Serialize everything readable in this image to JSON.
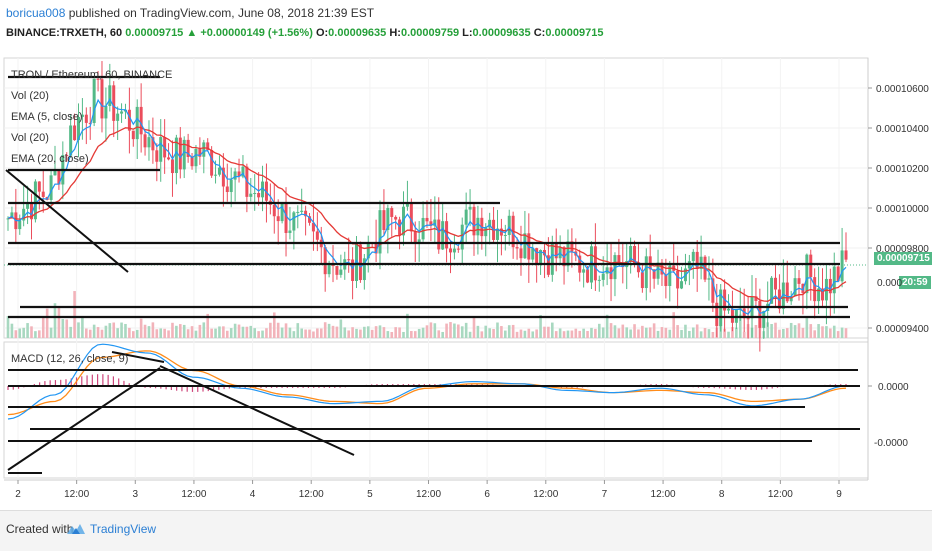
{
  "header": {
    "user": "boricua008",
    "published": "published on TradingView.com, June 08, 2018 21:39 EST",
    "symbol": "BINANCE:TRXETH, 60",
    "last": "0.00009715",
    "arrow": "▲",
    "change": "+0.00000149 (+1.56%)",
    "o_label": "O:",
    "o_val": "0.00009635",
    "h_label": "H:",
    "h_val": "0.00009759",
    "l_label": "L:",
    "l_val": "0.00009635",
    "c_label": "C:",
    "c_val": "0.00009715"
  },
  "legend": {
    "title": "TRON / Ethereum, 60, BINANCE",
    "items": [
      "Vol (20)",
      "EMA (5, close)",
      "Vol (20)",
      "EMA (20, close)"
    ],
    "macd": "MACD (12, 26, close, 9)"
  },
  "price_tags": {
    "last": "0.00009715",
    "timer": "20:59",
    "partial": "0.000"
  },
  "footer": {
    "created": "Created with",
    "brand": "TradingView",
    "logo_icon": "tradingview-logo-icon"
  },
  "colors": {
    "up": "#53b987",
    "down": "#eb4d5c",
    "ema_fast": "#2196f3",
    "ema_slow": "#e53935",
    "macd": "#2196f3",
    "signal": "#ff8c1a",
    "hist": "#c2185b",
    "accent": "#2b7fd4"
  },
  "chart_data": [
    {
      "type": "candlestick",
      "title": "TRON / Ethereum, 60, BINANCE",
      "y_ticks": [
        "0.00010600",
        "0.00010400",
        "0.00010200",
        "0.00010000",
        "0.00009800",
        "0.00009400"
      ],
      "x_ticks": [
        "2",
        "12:00",
        "3",
        "12:00",
        "4",
        "12:00",
        "5",
        "12:00",
        "6",
        "12:00",
        "7",
        "12:00",
        "8",
        "12:00",
        "9"
      ],
      "ylim": [
        9.35e-05,
        0.0001075
      ],
      "closes_approx": [
        9.95e-05,
        0.0001003,
        0.000101,
        0.000104,
        0.0001055,
        0.000105,
        0.000104,
        0.000103,
        0.0001025,
        0.0001028,
        0.000102,
        0.000101,
        0.0001005,
        9.95e-05,
        9.85e-05,
        9.75e-05,
        9.68e-05,
        9.85e-05,
        9.95e-05,
        9.93e-05,
        9.85e-05,
        9.9e-05,
        9.96e-05,
        9.92e-05,
        9.85e-05,
        9.78e-05,
        9.74e-05,
        9.72e-05,
        9.75e-05,
        9.72e-05,
        9.65e-05,
        9.6e-05,
        9.7e-05,
        9.5e-05,
        9.43e-05,
        9.5e-05,
        9.58e-05,
        9.68e-05,
        9.6e-05,
        9.72e-05
      ],
      "ema_legend": [
        "EMA (5, close)",
        "EMA (20, close)"
      ]
    },
    {
      "type": "line",
      "title": "MACD (12, 26, close, 9)",
      "y_ticks": [
        "0.0000",
        "-0.0000"
      ],
      "series": [
        {
          "name": "MACD",
          "values_norm": [
            -1.5,
            -0.4,
            1.9,
            1.5,
            0.4,
            -0.1,
            -0.5,
            -0.8,
            -0.7,
            0.0,
            0.2,
            0.1,
            -0.2,
            -0.3,
            -0.1,
            -0.4,
            -0.9,
            -0.6,
            0.0
          ]
        },
        {
          "name": "Signal",
          "values_norm": [
            -1.3,
            -0.7,
            1.3,
            1.6,
            0.7,
            0.0,
            -0.4,
            -0.7,
            -0.8,
            -0.1,
            0.1,
            0.1,
            -0.1,
            -0.3,
            -0.2,
            -0.3,
            -0.7,
            -0.6,
            -0.1
          ]
        }
      ]
    }
  ]
}
